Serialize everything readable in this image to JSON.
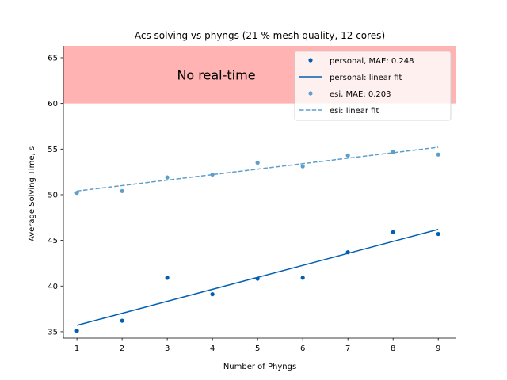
{
  "chart_data": {
    "type": "scatter",
    "title": "Acs solving vs phyngs (21 % mesh quality, 12 cores)",
    "xlabel": "Number of Phyngs",
    "ylabel": "Average Solving Time, s",
    "xlim": [
      0.7,
      9.4
    ],
    "ylim": [
      34.3,
      66.3
    ],
    "x_ticks": [
      1,
      2,
      3,
      4,
      5,
      6,
      7,
      8,
      9
    ],
    "y_ticks": [
      35,
      40,
      45,
      50,
      55,
      60,
      65
    ],
    "grid": false,
    "legend_position": "top-right",
    "band": {
      "label": "No real-time",
      "y_from": 60,
      "y_to": 66.3,
      "color": "#ffb3b3"
    },
    "series": [
      {
        "name": "personal, MAE: 0.248",
        "kind": "points",
        "color": "#005fb3",
        "x": [
          1,
          2,
          3,
          4,
          5,
          6,
          7,
          8,
          9
        ],
        "y": [
          35.1,
          36.2,
          40.9,
          39.1,
          40.8,
          40.9,
          43.7,
          45.9,
          45.7
        ]
      },
      {
        "name": "personal: linear fit",
        "kind": "line",
        "color": "#005fb3",
        "dash": false,
        "x": [
          1,
          9
        ],
        "y": [
          35.7,
          46.2
        ]
      },
      {
        "name": "esi, MAE: 0.203",
        "kind": "points",
        "color": "#5e9ecb",
        "x": [
          1,
          2,
          3,
          4,
          5,
          6,
          7,
          8,
          9
        ],
        "y": [
          50.2,
          50.4,
          51.9,
          52.2,
          53.5,
          53.1,
          54.3,
          54.7,
          54.4
        ]
      },
      {
        "name": "esi: linear fit",
        "kind": "line",
        "color": "#5e9ecb",
        "dash": true,
        "x": [
          1,
          9
        ],
        "y": [
          50.4,
          55.2
        ]
      }
    ]
  }
}
